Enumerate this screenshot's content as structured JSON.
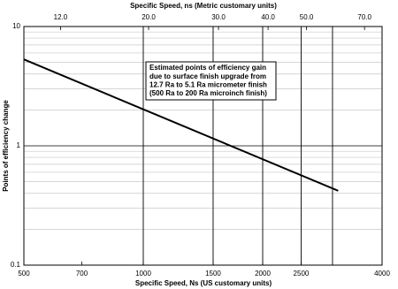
{
  "chart_data": {
    "type": "line",
    "xlabel": "Specific Speed, Ns (US customary units)",
    "x2label": "Specific Speed, ns (Metric customary units)",
    "ylabel": "Points of efficiency change",
    "annotation": [
      "Estimated points of efficiency gain",
      "due to surface finish upgrade from",
      "12.7 Ra to 5.1 Ra micrometer  finish",
      "(500 Ra to 200 Ra microinch finish)"
    ],
    "x": [
      500,
      3100
    ],
    "series": [
      {
        "color": "#000000",
        "values": [
          5.3,
          0.42
        ]
      }
    ],
    "xscale": "log",
    "yscale": "log",
    "xlim": [
      500,
      4000
    ],
    "xticks": [
      500,
      700,
      1000,
      1500,
      2000,
      2500,
      4000
    ],
    "x_grid": [
      1000,
      1500,
      2000,
      2500,
      3000
    ],
    "x2lim": [
      9.7,
      77.5
    ],
    "x2ticks": [
      {
        "value": 12,
        "label": "12.0"
      },
      {
        "value": 20,
        "label": "20.0"
      },
      {
        "value": 30,
        "label": "30.0"
      },
      {
        "value": 40,
        "label": "40.0"
      },
      {
        "value": 50,
        "label": "50.0"
      },
      {
        "value": 70,
        "label": "70.0"
      }
    ],
    "ylim": [
      0.1,
      10
    ],
    "yticks": [
      0.1,
      1,
      10
    ],
    "y_minor_grid": [
      0.2,
      0.3,
      0.4,
      0.5,
      0.6,
      0.7,
      0.8,
      0.9,
      2,
      3,
      4,
      5,
      6,
      7,
      8,
      9
    ]
  }
}
